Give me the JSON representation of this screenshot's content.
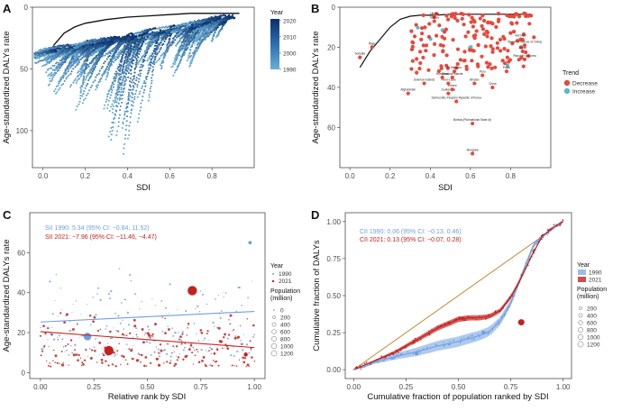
{
  "chart_data": [
    {
      "panel": "A",
      "type": "scatter",
      "title": "",
      "xlabel": "SDI",
      "ylabel": "Age-standardized DALYs rate",
      "xlim": [
        -0.05,
        1.0
      ],
      "ylim": [
        0,
        130
      ],
      "y_reversed": true,
      "x_ticks": [
        "0.0",
        "0.2",
        "0.4",
        "0.6",
        "0.8"
      ],
      "x_tick_values": [
        0.0,
        0.2,
        0.4,
        0.6,
        0.8
      ],
      "y_ticks": [
        "0",
        "50",
        "100"
      ],
      "y_tick_values": [
        0,
        50,
        100
      ],
      "legend_title": "Year",
      "legend_labels": [
        "2020",
        "2010",
        "2000",
        "1990"
      ],
      "legend_label_values": [
        2020,
        2010,
        2000,
        1990
      ],
      "colors": {
        "dark": "#08306b",
        "light": "#6baed6",
        "curve": "#111111"
      },
      "expected_curve": {
        "x": [
          0.05,
          0.1,
          0.15,
          0.2,
          0.3,
          0.4,
          0.5,
          0.6,
          0.7,
          0.8,
          0.9,
          0.93
        ],
        "y": [
          31,
          21,
          16,
          13,
          10,
          8,
          7,
          6,
          5,
          5,
          5,
          5
        ]
      },
      "trajectory_sample": [
        {
          "x": [
            0.08,
            0.28
          ],
          "y": [
            28,
            22
          ]
        },
        {
          "x": [
            0.28,
            0.52
          ],
          "y": [
            40,
            95
          ]
        },
        {
          "x": [
            0.45,
            0.5
          ],
          "y": [
            55,
            127
          ]
        },
        {
          "x": [
            0.55,
            0.62
          ],
          "y": [
            40,
            95
          ]
        },
        {
          "x": [
            0.75,
            0.8
          ],
          "y": [
            20,
            100
          ]
        },
        {
          "x": [
            0.82,
            0.93
          ],
          "y": [
            8,
            50
          ]
        }
      ]
    },
    {
      "panel": "B",
      "type": "scatter",
      "title": "",
      "xlabel": "SDI",
      "ylabel": "Age-standardized DALYs rate",
      "xlim": [
        -0.05,
        1.0
      ],
      "ylim": [
        0,
        80
      ],
      "y_reversed": true,
      "x_ticks": [
        "0.0",
        "0.2",
        "0.4",
        "0.6",
        "0.8"
      ],
      "x_tick_values": [
        0.0,
        0.2,
        0.4,
        0.6,
        0.8
      ],
      "y_ticks": [
        "0",
        "20",
        "40",
        "60"
      ],
      "y_tick_values": [
        0,
        20,
        40,
        60
      ],
      "legend_title": "Trend",
      "legend_labels": [
        "Decrease",
        "Increase"
      ],
      "colors": {
        "Decrease": "#e8483b",
        "Increase": "#5ab8d6",
        "curve": "#111111"
      },
      "expected_curve": {
        "x": [
          0.05,
          0.1,
          0.15,
          0.2,
          0.25,
          0.3,
          0.35,
          0.4,
          0.45,
          0.5,
          0.6,
          0.7,
          0.8,
          0.9
        ],
        "y": [
          30,
          22,
          16,
          10,
          6,
          4.5,
          4,
          4,
          3.8,
          3.5,
          3.5,
          3.5,
          3.5,
          3.5
        ]
      },
      "labeled_points": [
        {
          "label": "Mongolia",
          "x": 0.61,
          "y": 73
        },
        {
          "label": "Bolivia (Plurinational State of)",
          "x": 0.61,
          "y": 58
        },
        {
          "label": "Democratic People's Republic of Korea",
          "x": 0.53,
          "y": 47
        },
        {
          "label": "Guatemala",
          "x": 0.49,
          "y": 43
        },
        {
          "label": "Afghanistan",
          "x": 0.29,
          "y": 43
        },
        {
          "label": "Eritrea",
          "x": 0.51,
          "y": 41
        },
        {
          "label": "Solomon Islands",
          "x": 0.37,
          "y": 38
        },
        {
          "label": "Timor-Leste",
          "x": 0.49,
          "y": 38
        },
        {
          "label": "Honduras",
          "x": 0.46,
          "y": 35
        },
        {
          "label": "El Salvador",
          "x": 0.52,
          "y": 32
        },
        {
          "label": "Marshall Islands",
          "x": 0.51,
          "y": 35
        },
        {
          "label": "Peru",
          "x": 0.66,
          "y": 34
        },
        {
          "label": "Bhutan",
          "x": 0.62,
          "y": 38
        },
        {
          "label": "China",
          "x": 0.71,
          "y": 40
        },
        {
          "label": "Palau",
          "x": 0.78,
          "y": 32
        },
        {
          "label": "Republic of Korea",
          "x": 0.87,
          "y": 26
        },
        {
          "label": "Viet Nam",
          "x": 0.85,
          "y": 16
        },
        {
          "label": "Taiwan (Province of China)",
          "x": 0.87,
          "y": 19
        },
        {
          "label": "Japan",
          "x": 0.86,
          "y": 22
        },
        {
          "label": "Niger",
          "x": 0.11,
          "y": 20
        },
        {
          "label": "Somalia",
          "x": 0.05,
          "y": 25
        },
        {
          "label": "Liberia",
          "x": 0.42,
          "y": 5
        },
        {
          "label": "Guinea",
          "x": 0.42,
          "y": 7
        }
      ]
    },
    {
      "panel": "C",
      "type": "scatter",
      "title": "",
      "xlabel": "Relative rank by SDI",
      "ylabel": "Age-standardized DALYs rate",
      "xlim": [
        -0.05,
        1.05
      ],
      "ylim": [
        -3,
        80
      ],
      "x_ticks": [
        "0.00",
        "0.25",
        "0.50",
        "0.75",
        "1.00"
      ],
      "x_tick_values": [
        0.0,
        0.25,
        0.5,
        0.75,
        1.0
      ],
      "y_ticks": [
        "0",
        "20",
        "40",
        "60"
      ],
      "y_tick_values": [
        0,
        20,
        40,
        60
      ],
      "annotations": [
        "SII 1990: 5.34 (95% CI: −0.84, 11.52)",
        "SII 2021: −7.96 (95% CI: −11.46, −4.47)"
      ],
      "legend_title": "Year",
      "legend_labels": [
        "1990",
        "2021"
      ],
      "population_title": "Population (million)",
      "population_labels": [
        "0",
        "200",
        "400",
        "600",
        "800",
        "1000",
        "1200"
      ],
      "series": [
        {
          "name": "1990",
          "color": "#6e9fe0",
          "regression": {
            "x": [
              0,
              1
            ],
            "y": [
              25.3,
              30.6
            ]
          }
        },
        {
          "name": "2021",
          "color": "#c3211e",
          "regression": {
            "x": [
              0,
              1
            ],
            "y": [
              20.5,
              12.5
            ]
          }
        }
      ],
      "highlight_points": [
        {
          "year": "2021",
          "x": 0.71,
          "y": 41,
          "population": 1400
        },
        {
          "year": "2021",
          "x": 0.32,
          "y": 11,
          "population": 1400
        },
        {
          "year": "1990",
          "x": 0.22,
          "y": 18,
          "population": 850
        },
        {
          "year": "1990",
          "x": 0.98,
          "y": 65,
          "population": 60
        },
        {
          "year": "2021",
          "x": 0.96,
          "y": 9,
          "population": 120
        }
      ]
    },
    {
      "panel": "D",
      "type": "line",
      "title": "",
      "xlabel": "Cumulative fraction of population ranked by SDI",
      "ylabel": "Cumulative fraction of DALYs",
      "xlim": [
        -0.04,
        1.04
      ],
      "ylim": [
        -0.06,
        1.06
      ],
      "x_ticks": [
        "0.00",
        "0.25",
        "0.50",
        "0.75",
        "1.00"
      ],
      "x_tick_values": [
        0.0,
        0.25,
        0.5,
        0.75,
        1.0
      ],
      "y_ticks": [
        "0.00",
        "0.25",
        "0.50",
        "0.75",
        "1.00"
      ],
      "y_tick_values": [
        0.0,
        0.25,
        0.5,
        0.75,
        1.0
      ],
      "annotations": [
        "CII 1990: 0.06 (95% CI: −0.13, 0.46)",
        "CII 2021: 0.13 (95% CI: −0.07, 0.28)"
      ],
      "legend_title": "Year",
      "legend_labels": [
        "1990",
        "2021"
      ],
      "population_title": "Population (million)",
      "population_labels": [
        "200",
        "400",
        "600",
        "800",
        "1000",
        "1200"
      ],
      "equality_line": {
        "x": [
          0,
          1
        ],
        "y": [
          0,
          1
        ],
        "color": "#c7893a"
      },
      "series": [
        {
          "name": "1990",
          "color": "#6e9fe0",
          "x": [
            0,
            0.05,
            0.1,
            0.15,
            0.2,
            0.3,
            0.4,
            0.5,
            0.6,
            0.65,
            0.7,
            0.75,
            0.8,
            0.83,
            0.86,
            0.9,
            0.95,
            1.0
          ],
          "y": [
            0,
            0.02,
            0.05,
            0.07,
            0.09,
            0.12,
            0.16,
            0.19,
            0.23,
            0.26,
            0.33,
            0.45,
            0.63,
            0.74,
            0.84,
            0.9,
            0.95,
            1.0
          ]
        },
        {
          "name": "2021",
          "color": "#c3211e",
          "x": [
            0,
            0.05,
            0.1,
            0.2,
            0.3,
            0.4,
            0.5,
            0.55,
            0.6,
            0.65,
            0.7,
            0.75,
            0.8,
            0.85,
            0.9,
            0.95,
            1.0
          ],
          "y": [
            0,
            0.03,
            0.06,
            0.12,
            0.2,
            0.28,
            0.34,
            0.35,
            0.35,
            0.36,
            0.4,
            0.49,
            0.62,
            0.77,
            0.9,
            0.96,
            1.0
          ]
        }
      ]
    }
  ],
  "panels": {
    "A": "A",
    "B": "B",
    "C": "C",
    "D": "D"
  }
}
